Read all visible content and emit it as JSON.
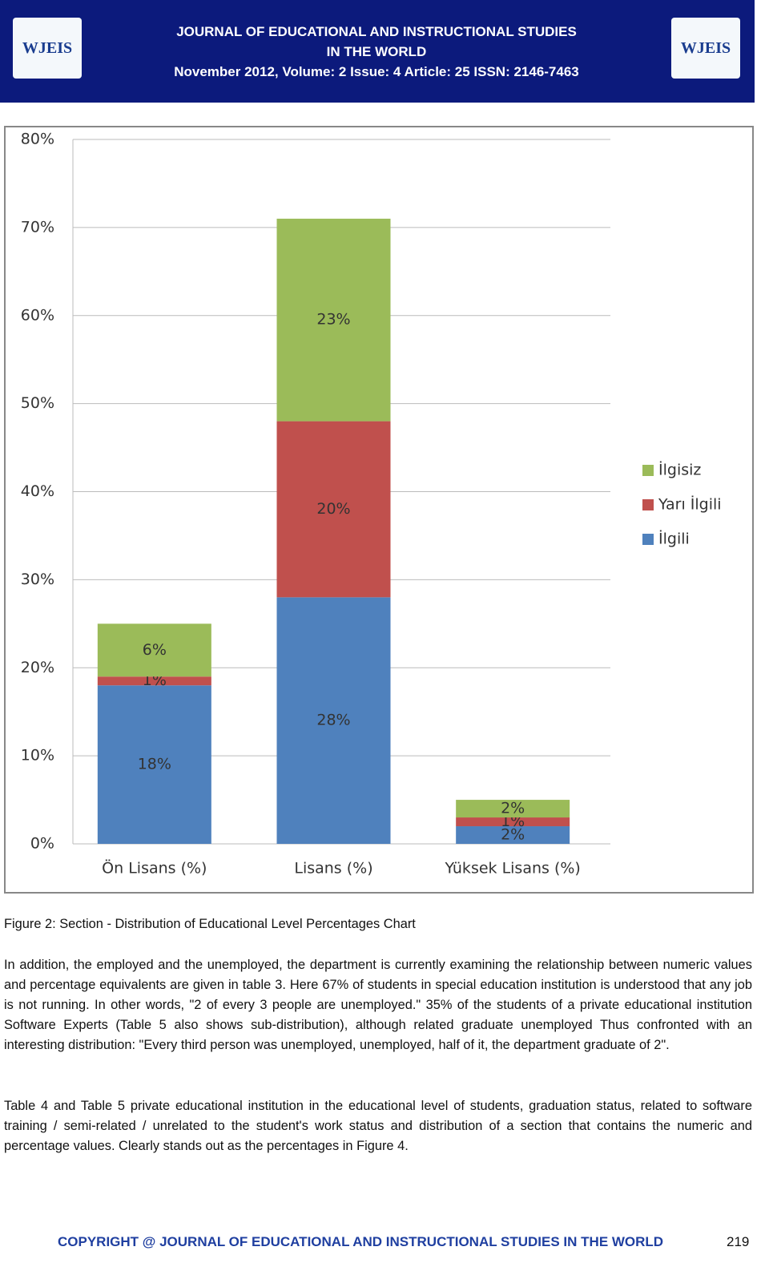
{
  "header": {
    "logos": [
      "WJEIS",
      "WJEIS"
    ],
    "title_line1": "JOURNAL OF EDUCATIONAL AND INSTRUCTIONAL STUDIES",
    "title_line2": "IN THE WORLD",
    "issue": "November 2012,  Volume: 2  Issue: 4  Article: 25  ISSN: 2146-7463"
  },
  "chart_data": {
    "type": "stacked-bar",
    "categories": [
      "Ön  Lisans (%)",
      "Lisans (%)",
      "Yüksek Lisans (%)"
    ],
    "series": [
      {
        "name": "İlgili",
        "color": "#4f81bd",
        "values": [
          18,
          28,
          2
        ],
        "value_labels": [
          "18%",
          "28%",
          "2%"
        ]
      },
      {
        "name": "Yarı İlgili",
        "color": "#c0504d",
        "values": [
          1,
          20,
          1
        ],
        "value_labels": [
          "1%",
          "20%",
          "1%"
        ]
      },
      {
        "name": "İlgisiz",
        "color": "#9bbb59",
        "values": [
          6,
          23,
          2
        ],
        "value_labels": [
          "6%",
          "23%",
          "2%"
        ]
      }
    ],
    "ylim": [
      0,
      80
    ],
    "yticks": [
      {
        "value": 0,
        "label": "0%"
      },
      {
        "value": 10,
        "label": "10%"
      },
      {
        "value": 20,
        "label": "20%"
      },
      {
        "value": 30,
        "label": "30%"
      },
      {
        "value": 40,
        "label": "40%"
      },
      {
        "value": 50,
        "label": "50%"
      },
      {
        "value": 60,
        "label": "60%"
      },
      {
        "value": 70,
        "label": "70%"
      },
      {
        "value": 80,
        "label": "80%"
      }
    ],
    "grid": true,
    "legend": "right"
  },
  "caption": "Figure 2: Section - Distribution of Educational Level Percentages Chart",
  "paragraphs": [
    "In addition, the employed and the unemployed, the department is currently examining the relationship between numeric values and percentage equivalents are given in table 3. Here 67% of students in special education institution is understood that any job is not running. In other words, \"2 of every 3 people are unemployed.\" 35% of the students of a private educational institution Software Experts (Table 5 also shows sub-distribution), although related graduate unemployed Thus confronted with an interesting distribution: \"Every third person was unemployed, unemployed, half of it, the department graduate of 2\".",
    "Table 4 and Table 5 private educational institution in the educational level of students, graduation status, related to software training / semi-related / unrelated to the student's work status and distribution of a section that contains the numeric and percentage values. Clearly stands out as the percentages in Figure 4."
  ],
  "footer": {
    "copyright": "COPYRIGHT @ JOURNAL OF EDUCATIONAL AND INSTRUCTIONAL STUDIES IN THE WORLD",
    "page": "219"
  }
}
